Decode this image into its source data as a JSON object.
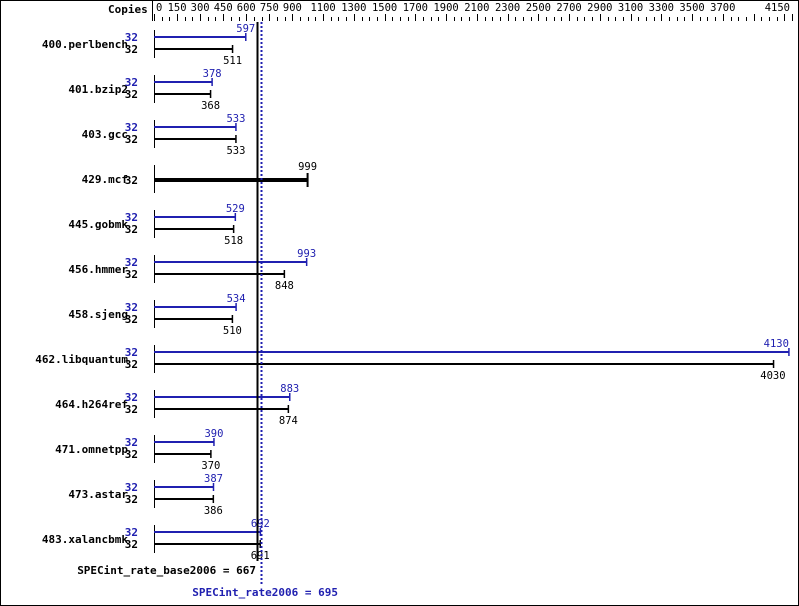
{
  "chart_data": {
    "type": "bar",
    "orientation": "horizontal",
    "axis_label": "Copies",
    "xlim": [
      0,
      4150
    ],
    "tick_labels": [
      0,
      150,
      300,
      450,
      600,
      750,
      900,
      1100,
      1300,
      1500,
      1700,
      1900,
      2100,
      2300,
      2500,
      2700,
      2900,
      3100,
      3300,
      3500,
      3700,
      4150
    ],
    "categories": [
      "400.perlbench",
      "401.bzip2",
      "403.gcc",
      "429.mcf",
      "445.gobmk",
      "456.hmmer",
      "458.sjeng",
      "462.libquantum",
      "464.h264ref",
      "471.omnetpp",
      "473.astar",
      "483.xalancbmk"
    ],
    "series": [
      {
        "name": "SPECint_rate2006",
        "color": "#2020b0",
        "copies": [
          32,
          32,
          32,
          null,
          32,
          32,
          32,
          32,
          32,
          32,
          32,
          32
        ],
        "values": [
          597,
          378,
          533,
          null,
          529,
          993,
          534,
          4130,
          883,
          390,
          387,
          692
        ]
      },
      {
        "name": "SPECint_rate_base2006",
        "color": "#000000",
        "copies": [
          32,
          32,
          32,
          32,
          32,
          32,
          32,
          32,
          32,
          32,
          32,
          32
        ],
        "values": [
          511,
          368,
          533,
          999,
          518,
          848,
          510,
          4030,
          874,
          370,
          386,
          691
        ]
      }
    ],
    "summary": {
      "base_label": "SPECint_rate_base2006 = 667",
      "base_value": 667,
      "peak_label": "SPECint_rate2006 = 695",
      "peak_value": 695
    }
  }
}
